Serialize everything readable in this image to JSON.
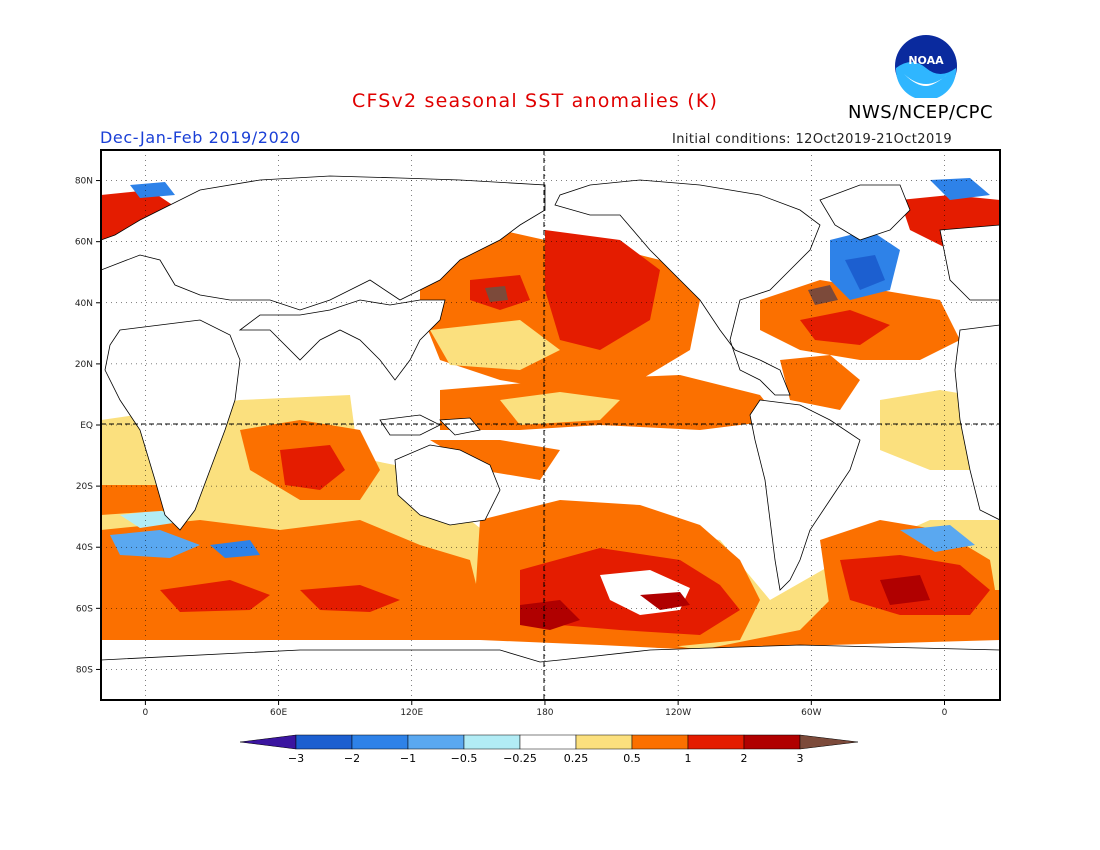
{
  "title": "CFSv2 seasonal SST anomalies (K)",
  "organization": "NWS/NCEP/CPC",
  "logo_text": "NOAA",
  "season": "Dec-Jan-Feb 2019/2020",
  "initial_conditions": "Initial conditions: 12Oct2019-21Oct2019",
  "map": {
    "projection": "cylindrical equidistant",
    "lon_range": [
      -20,
      385
    ],
    "lat_range": [
      -90,
      90
    ],
    "reference_lines": [
      "EQ",
      "180"
    ],
    "lat_labels": [
      "80N",
      "60N",
      "40N",
      "20N",
      "EQ",
      "20S",
      "40S",
      "60S",
      "80S"
    ],
    "lon_labels": [
      "0",
      "60E",
      "120E",
      "180",
      "120W",
      "60W",
      "0"
    ]
  },
  "colorbar": {
    "labels": [
      "-3",
      "-2",
      "-1",
      "-0.5",
      "-0.25",
      "0.25",
      "0.5",
      "1",
      "2",
      "3"
    ],
    "colors": [
      "#3b15a0",
      "#1c5fd0",
      "#2e82e8",
      "#5aa8f0",
      "#b2ecf5",
      "#ffffff",
      "#fbe07e",
      "#fb7000",
      "#e41c00",
      "#b00000",
      "#7c4a3a"
    ]
  },
  "colors": {
    "title": "#e00000",
    "season": "#1a3fd6",
    "frame": "#000000"
  }
}
